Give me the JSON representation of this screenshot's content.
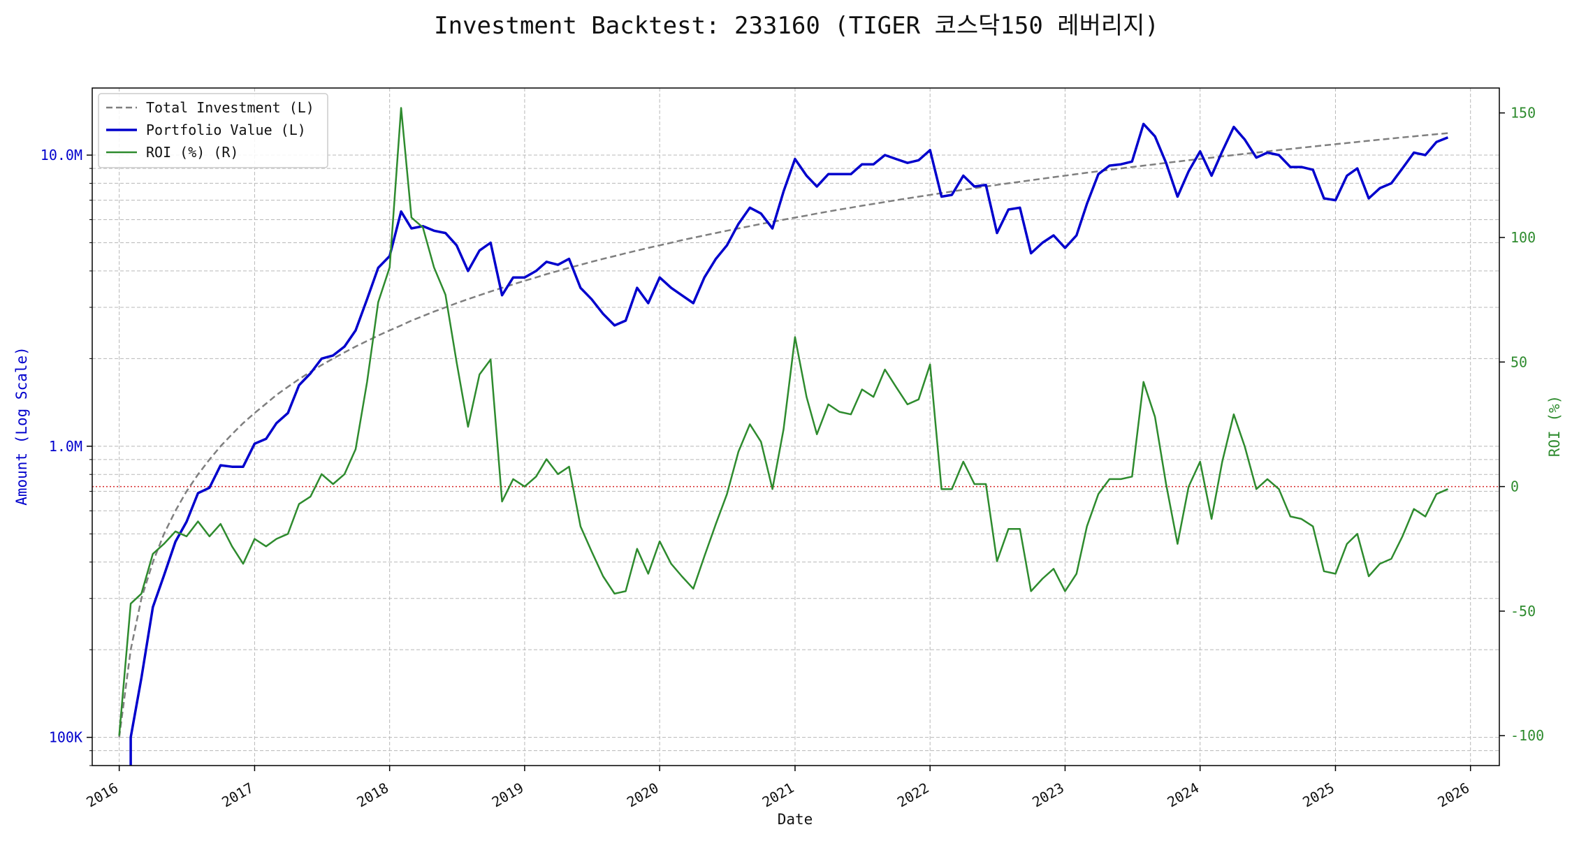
{
  "chart_data": {
    "type": "line",
    "title": "Investment Backtest: 233160 (TIGER 코스닥150 레버리지)",
    "xlabel": "Date",
    "ylabel_left": "Amount (Log Scale)",
    "ylabel_right": "ROI (%)",
    "y_left_scale": "log",
    "y_left_range": [
      80000,
      17000000
    ],
    "y_right_range": [
      -112,
      160
    ],
    "x_range": [
      "2015-10-20",
      "2026-03-20"
    ],
    "x_ticks": [
      "2016",
      "2017",
      "2018",
      "2019",
      "2020",
      "2021",
      "2022",
      "2023",
      "2024",
      "2025",
      "2026"
    ],
    "y_left_ticks": [
      {
        "value": 100000,
        "label": "100K"
      },
      {
        "value": 1000000,
        "label": "1.0M"
      },
      {
        "value": 10000000,
        "label": "10.0M"
      }
    ],
    "y_right_ticks": [
      -100,
      -50,
      0,
      50,
      100,
      150
    ],
    "grid": true,
    "legend_position": "top-left",
    "reference_line": {
      "axis": "right",
      "value": 0,
      "color": "#d62728",
      "style": "dotted"
    },
    "colors": {
      "investment": "#7f7f7f",
      "portfolio": "#0000cc",
      "roi": "#2e8b2e",
      "left_axis": "#0000cc",
      "right_axis": "#2e8b2e"
    },
    "series": [
      {
        "name": "Total Investment (L)",
        "axis": "left",
        "style": "dashed",
        "dates": [
          "2016-01",
          "2016-02",
          "2016-03",
          "2016-04",
          "2016-05",
          "2016-06",
          "2016-07",
          "2016-08",
          "2016-09",
          "2016-10",
          "2016-11",
          "2016-12",
          "2017-01",
          "2017-02",
          "2017-03",
          "2017-04",
          "2017-05",
          "2017-06",
          "2017-07",
          "2017-08",
          "2017-09",
          "2017-10",
          "2017-11",
          "2017-12",
          "2018-01",
          "2018-02",
          "2018-03",
          "2018-04",
          "2018-05",
          "2018-06",
          "2018-07",
          "2018-08",
          "2018-09",
          "2018-10",
          "2018-11",
          "2018-12",
          "2019-01",
          "2019-02",
          "2019-03",
          "2019-04",
          "2019-05",
          "2019-06",
          "2019-07",
          "2019-08",
          "2019-09",
          "2019-10",
          "2019-11",
          "2019-12",
          "2020-01",
          "2020-02",
          "2020-03",
          "2020-04",
          "2020-05",
          "2020-06",
          "2020-07",
          "2020-08",
          "2020-09",
          "2020-10",
          "2020-11",
          "2020-12",
          "2021-01",
          "2021-02",
          "2021-03",
          "2021-04",
          "2021-05",
          "2021-06",
          "2021-07",
          "2021-08",
          "2021-09",
          "2021-10",
          "2021-11",
          "2021-12",
          "2022-01",
          "2022-02",
          "2022-03",
          "2022-04",
          "2022-05",
          "2022-06",
          "2022-07",
          "2022-08",
          "2022-09",
          "2022-10",
          "2022-11",
          "2022-12",
          "2023-01",
          "2023-02",
          "2023-03",
          "2023-04",
          "2023-05",
          "2023-06",
          "2023-07",
          "2023-08",
          "2023-09",
          "2023-10",
          "2023-11",
          "2023-12",
          "2024-01",
          "2024-02",
          "2024-03",
          "2024-04",
          "2024-05",
          "2024-06",
          "2024-07",
          "2024-08",
          "2024-09",
          "2024-10",
          "2024-11",
          "2024-12",
          "2025-01",
          "2025-02",
          "2025-03",
          "2025-04",
          "2025-05",
          "2025-06",
          "2025-07",
          "2025-08",
          "2025-09",
          "2025-10",
          "2025-11"
        ],
        "values": [
          100000,
          200000,
          300000,
          400000,
          500000,
          600000,
          700000,
          800000,
          900000,
          1000000,
          1100000,
          1200000,
          1300000,
          1400000,
          1500000,
          1600000,
          1700000,
          1800000,
          1900000,
          2000000,
          2100000,
          2200000,
          2300000,
          2400000,
          2500000,
          2600000,
          2700000,
          2800000,
          2900000,
          3000000,
          3100000,
          3200000,
          3300000,
          3400000,
          3500000,
          3600000,
          3700000,
          3800000,
          3900000,
          4000000,
          4100000,
          4200000,
          4300000,
          4400000,
          4500000,
          4600000,
          4700000,
          4800000,
          4900000,
          5000000,
          5100000,
          5200000,
          5300000,
          5400000,
          5500000,
          5600000,
          5700000,
          5800000,
          5900000,
          6000000,
          6100000,
          6200000,
          6300000,
          6400000,
          6500000,
          6600000,
          6700000,
          6800000,
          6900000,
          7000000,
          7100000,
          7200000,
          7300000,
          7400000,
          7500000,
          7600000,
          7700000,
          7800000,
          7900000,
          8000000,
          8100000,
          8200000,
          8300000,
          8400000,
          8500000,
          8600000,
          8700000,
          8800000,
          8900000,
          9000000,
          9100000,
          9200000,
          9300000,
          9400000,
          9500000,
          9600000,
          9700000,
          9800000,
          9900000,
          10000000,
          10100000,
          10200000,
          10300000,
          10400000,
          10500000,
          10600000,
          10700000,
          10800000,
          10900000,
          11000000,
          11100000,
          11200000,
          11300000,
          11400000,
          11500000,
          11600000,
          11700000,
          11800000,
          11900000
        ]
      },
      {
        "name": "Portfolio Value (L)",
        "axis": "left",
        "style": "solid",
        "dates": [
          "2016-02",
          "2016-03",
          "2016-04",
          "2016-05",
          "2016-06",
          "2016-07",
          "2016-08",
          "2016-09",
          "2016-10",
          "2016-11",
          "2016-12",
          "2017-01",
          "2017-02",
          "2017-03",
          "2017-04",
          "2017-05",
          "2017-06",
          "2017-07",
          "2017-08",
          "2017-09",
          "2017-10",
          "2017-11",
          "2017-12",
          "2018-01",
          "2018-02",
          "2018-03",
          "2018-04",
          "2018-05",
          "2018-06",
          "2018-07",
          "2018-08",
          "2018-09",
          "2018-10",
          "2018-11",
          "2018-12",
          "2019-01",
          "2019-02",
          "2019-03",
          "2019-04",
          "2019-05",
          "2019-06",
          "2019-07",
          "2019-08",
          "2019-09",
          "2019-10",
          "2019-11",
          "2019-12",
          "2020-01",
          "2020-02",
          "2020-03",
          "2020-04",
          "2020-05",
          "2020-06",
          "2020-07",
          "2020-08",
          "2020-09",
          "2020-10",
          "2020-11",
          "2020-12",
          "2021-01",
          "2021-02",
          "2021-03",
          "2021-04",
          "2021-05",
          "2021-06",
          "2021-07",
          "2021-08",
          "2021-09",
          "2021-10",
          "2021-11",
          "2021-12",
          "2022-01",
          "2022-02",
          "2022-03",
          "2022-04",
          "2022-05",
          "2022-06",
          "2022-07",
          "2022-08",
          "2022-09",
          "2022-10",
          "2022-11",
          "2022-12",
          "2023-01",
          "2023-02",
          "2023-03",
          "2023-04",
          "2023-05",
          "2023-06",
          "2023-07",
          "2023-08",
          "2023-09",
          "2023-10",
          "2023-11",
          "2023-12",
          "2024-01",
          "2024-02",
          "2024-03",
          "2024-04",
          "2024-05",
          "2024-06",
          "2024-07",
          "2024-08",
          "2024-09",
          "2024-10",
          "2024-11",
          "2024-12",
          "2025-01",
          "2025-02",
          "2025-03",
          "2025-04",
          "2025-05",
          "2025-06",
          "2025-07",
          "2025-08",
          "2025-09",
          "2025-10",
          "2025-11"
        ],
        "values": [
          100000,
          160000,
          280000,
          360000,
          470000,
          550000,
          690000,
          720000,
          860000,
          850000,
          850000,
          1020000,
          1060000,
          1200000,
          1300000,
          1620000,
          1780000,
          2000000,
          2050000,
          2200000,
          2500000,
          3200000,
          4100000,
          4500000,
          6400000,
          5600000,
          5700000,
          5500000,
          5400000,
          4900000,
          4000000,
          4700000,
          5000000,
          3300000,
          3800000,
          3800000,
          4000000,
          4300000,
          4200000,
          4400000,
          3500000,
          3200000,
          2850000,
          2600000,
          2700000,
          3500000,
          3100000,
          3800000,
          3500000,
          3300000,
          3100000,
          3800000,
          4400000,
          4900000,
          5800000,
          6600000,
          6300000,
          5600000,
          7500000,
          9700000,
          8500000,
          7800000,
          8600000,
          8600000,
          8600000,
          9300000,
          9300000,
          10000000,
          9700000,
          9400000,
          9600000,
          10400000,
          7200000,
          7300000,
          8500000,
          7800000,
          7900000,
          5400000,
          6500000,
          6600000,
          4600000,
          5000000,
          5300000,
          4800000,
          5300000,
          6800000,
          8600000,
          9200000,
          9300000,
          9500000,
          12800000,
          11600000,
          9400000,
          7200000,
          8800000,
          10300000,
          8500000,
          10300000,
          12500000,
          11300000,
          9800000,
          10200000,
          10000000,
          9100000,
          9100000,
          8900000,
          7100000,
          7000000,
          8500000,
          9000000,
          7100000,
          7700000,
          8000000,
          9000000,
          10200000,
          10000000,
          11100000,
          11500000
        ]
      },
      {
        "name": "ROI (%) (R)",
        "axis": "right",
        "style": "solid",
        "dates": [
          "2016-01",
          "2016-02",
          "2016-03",
          "2016-04",
          "2016-05",
          "2016-06",
          "2016-07",
          "2016-08",
          "2016-09",
          "2016-10",
          "2016-11",
          "2016-12",
          "2017-01",
          "2017-02",
          "2017-03",
          "2017-04",
          "2017-05",
          "2017-06",
          "2017-07",
          "2017-08",
          "2017-09",
          "2017-10",
          "2017-11",
          "2017-12",
          "2018-01",
          "2018-02",
          "2018-03",
          "2018-04",
          "2018-05",
          "2018-06",
          "2018-07",
          "2018-08",
          "2018-09",
          "2018-10",
          "2018-11",
          "2018-12",
          "2019-01",
          "2019-02",
          "2019-03",
          "2019-04",
          "2019-05",
          "2019-06",
          "2019-07",
          "2019-08",
          "2019-09",
          "2019-10",
          "2019-11",
          "2019-12",
          "2020-01",
          "2020-02",
          "2020-03",
          "2020-04",
          "2020-05",
          "2020-06",
          "2020-07",
          "2020-08",
          "2020-09",
          "2020-10",
          "2020-11",
          "2020-12",
          "2021-01",
          "2021-02",
          "2021-03",
          "2021-04",
          "2021-05",
          "2021-06",
          "2021-07",
          "2021-08",
          "2021-09",
          "2021-10",
          "2021-11",
          "2021-12",
          "2022-01",
          "2022-02",
          "2022-03",
          "2022-04",
          "2022-05",
          "2022-06",
          "2022-07",
          "2022-08",
          "2022-09",
          "2022-10",
          "2022-11",
          "2022-12",
          "2023-01",
          "2023-02",
          "2023-03",
          "2023-04",
          "2023-05",
          "2023-06",
          "2023-07",
          "2023-08",
          "2023-09",
          "2023-10",
          "2023-11",
          "2023-12",
          "2024-01",
          "2024-02",
          "2024-03",
          "2024-04",
          "2024-05",
          "2024-06",
          "2024-07",
          "2024-08",
          "2024-09",
          "2024-10",
          "2024-11",
          "2024-12",
          "2025-01",
          "2025-02",
          "2025-03",
          "2025-04",
          "2025-05",
          "2025-06",
          "2025-07",
          "2025-08",
          "2025-09",
          "2025-10",
          "2025-11"
        ],
        "values": [
          -100,
          -47,
          -43,
          -27,
          -23,
          -18,
          -20,
          -14,
          -20,
          -15,
          -24,
          -31,
          -21,
          -24,
          -21,
          -19,
          -7,
          -4,
          5,
          1,
          5,
          15,
          42,
          74,
          88,
          152,
          108,
          104,
          88,
          77,
          50,
          24,
          45,
          51,
          -6,
          3,
          0,
          4,
          11,
          5,
          8,
          -16,
          -26,
          -36,
          -43,
          -42,
          -25,
          -35,
          -22,
          -31,
          -36,
          -41,
          -28,
          -15,
          -3,
          14,
          25,
          18,
          -1,
          23,
          60,
          36,
          21,
          33,
          30,
          29,
          39,
          36,
          47,
          40,
          33,
          35,
          49,
          -1,
          -1,
          10,
          1,
          1,
          -30,
          -17,
          -17,
          -42,
          -37,
          -33,
          -42,
          -35,
          -16,
          -3,
          3,
          3,
          4,
          42,
          28,
          1,
          -23,
          0,
          10,
          -13,
          10,
          29,
          16,
          -1,
          3,
          -1,
          -12,
          -13,
          -16,
          -34,
          -35,
          -23,
          -19,
          -36,
          -31,
          -29,
          -20,
          -9,
          -12,
          -3,
          -1
        ]
      }
    ]
  }
}
